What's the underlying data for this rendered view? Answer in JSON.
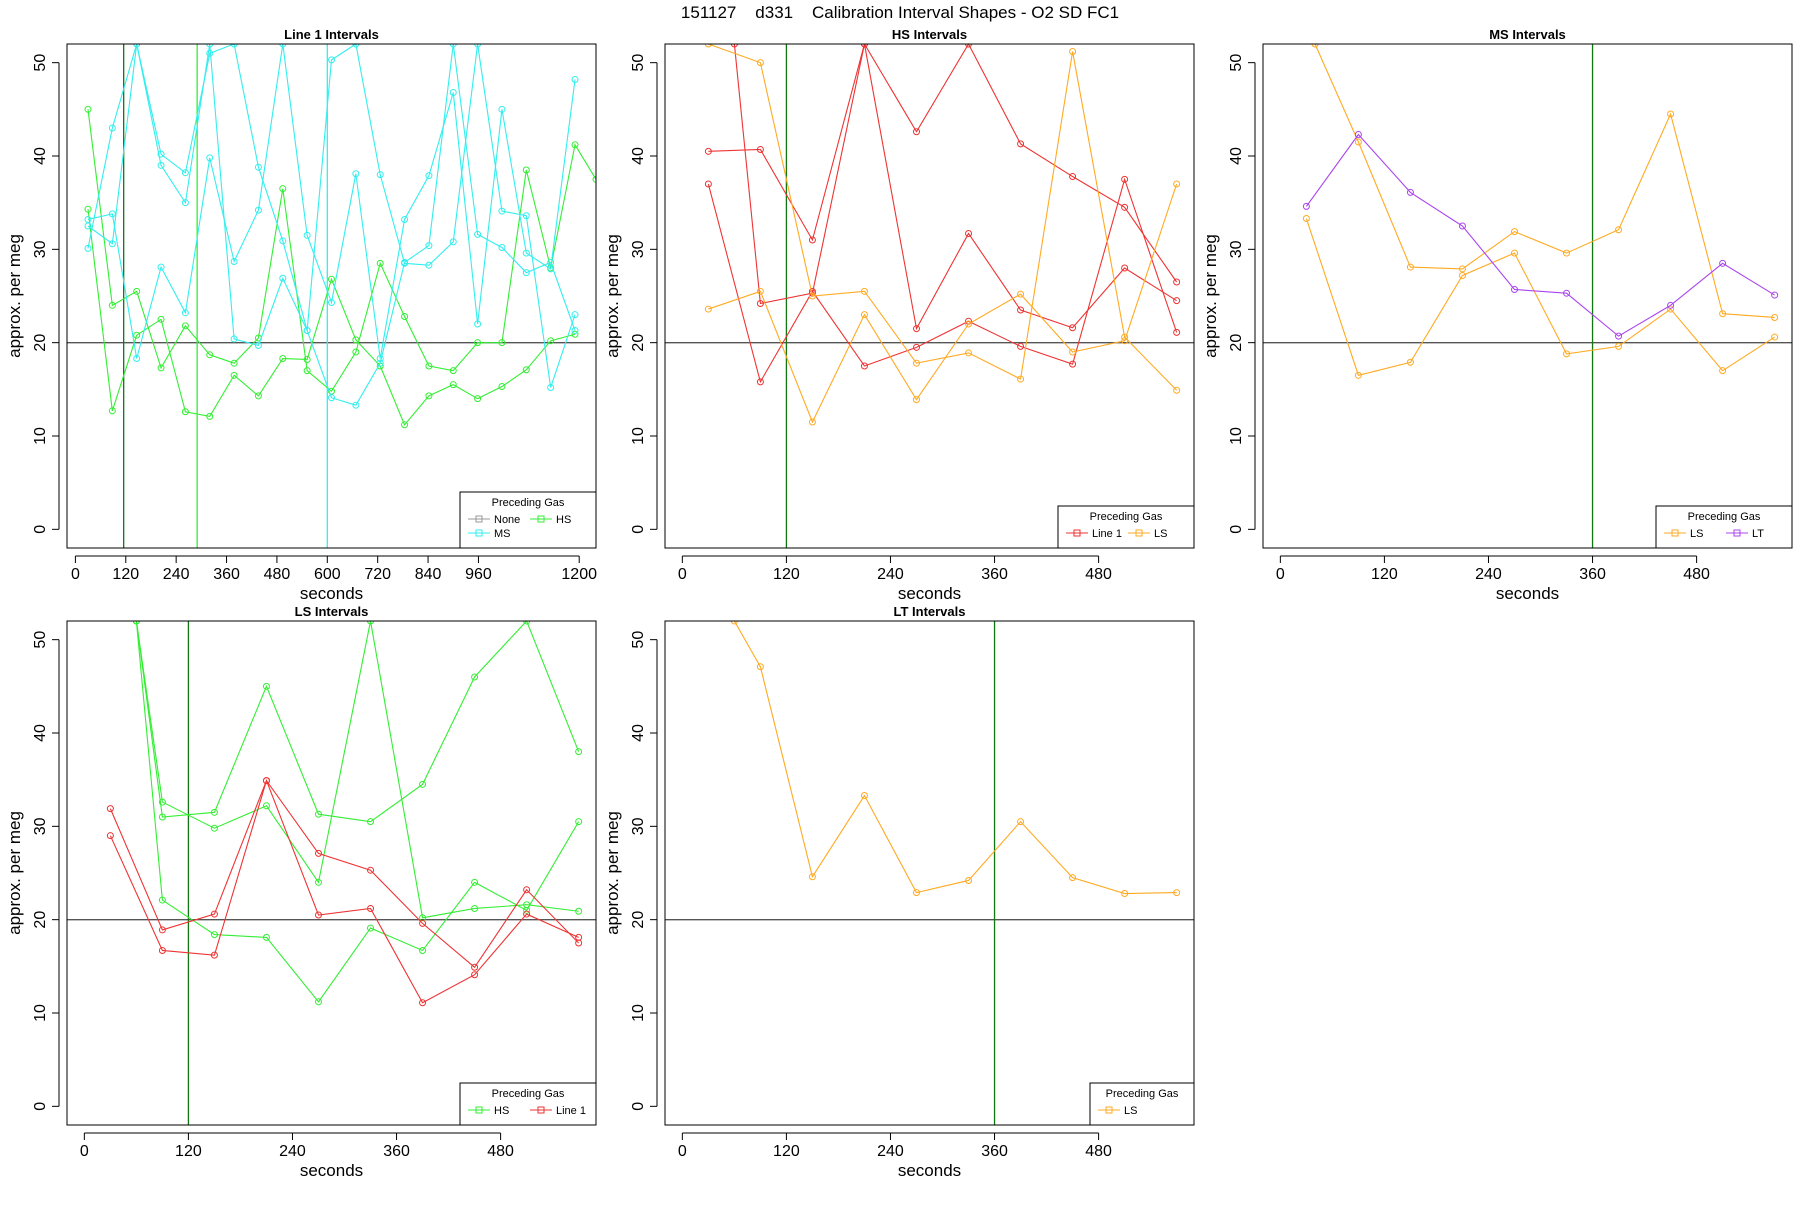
{
  "figure": {
    "title": "151127    d331    Calibration Interval Shapes - O2 SD FC1"
  },
  "colors": {
    "None": "#999999",
    "HS": "#33ee33",
    "MS": "#33eeee",
    "Line 1": "#ee3333",
    "LS": "#ffaa22",
    "LT": "#aa44ee",
    "reference_line": "#555555",
    "vline_green": "#117711",
    "vline_lime": "#33ee33",
    "vline_cyan": "#33eeee"
  },
  "chart_data": [
    {
      "type": "line",
      "title": "Line 1 Intervals",
      "xlabel": "seconds",
      "ylabel": "approx. per meg",
      "xlim": [
        -20,
        1240
      ],
      "ylim": [
        -2,
        52
      ],
      "xticks": [
        0,
        120,
        240,
        360,
        480,
        600,
        720,
        840,
        960,
        1200
      ],
      "yticks": [
        0,
        10,
        20,
        30,
        40,
        50
      ],
      "hline": 20,
      "vlines": [
        {
          "x": 115,
          "color": "vline_green"
        },
        {
          "x": 290,
          "color": "vline_lime"
        },
        {
          "x": 600,
          "color": "vline_cyan"
        }
      ],
      "legend": {
        "title": "Preceding Gas",
        "entries": [
          "None",
          "HS",
          "MS"
        ],
        "position": "bottom-right"
      },
      "series": [
        {
          "group": "HS",
          "x": [
            30,
            88,
            146,
            204,
            262,
            320,
            378,
            436,
            494,
            552,
            610,
            668,
            726,
            784,
            842,
            900,
            958,
            1016,
            1074,
            1132,
            1190,
            1240
          ],
          "y": [
            45,
            24,
            25.5,
            17.3,
            21.8,
            18.7,
            17.8,
            20.5,
            36.5,
            17,
            14.8,
            19,
            28.5,
            22.8,
            17.5,
            17,
            20,
            20,
            38.5,
            28,
            41.2,
            37.5
          ]
        },
        {
          "group": "HS",
          "x": [
            30,
            88,
            146,
            204,
            262,
            320,
            378,
            436,
            494,
            552,
            610,
            668,
            726,
            784,
            842,
            900,
            958,
            1016,
            1074,
            1132,
            1190
          ],
          "y": [
            34.3,
            12.7,
            20.8,
            22.5,
            12.6,
            12.1,
            16.5,
            14.3,
            18.3,
            18.2,
            26.8,
            20.3,
            17.5,
            11.2,
            14.3,
            15.5,
            14,
            15.3,
            17.1,
            20.2,
            20.9
          ]
        },
        {
          "group": "MS",
          "x": [
            30,
            88,
            146,
            204,
            262,
            320,
            378,
            436,
            494,
            552,
            610,
            668,
            726,
            784,
            842,
            900,
            958,
            1016,
            1074,
            1132,
            1190
          ],
          "y": [
            33.2,
            33.8,
            18.3,
            28.1,
            23.2,
            39.8,
            28.7,
            34.2,
            52,
            31.5,
            24.3,
            38.1,
            18.3,
            33.2,
            37.9,
            46.8,
            22,
            45,
            29.6,
            27.9,
            48.2
          ]
        },
        {
          "group": "MS",
          "x": [
            30,
            88,
            146,
            204,
            262,
            320,
            378,
            436,
            494,
            552,
            610,
            668,
            726,
            784,
            842,
            900,
            958,
            1016,
            1074,
            1132,
            1190
          ],
          "y": [
            30.1,
            43,
            52,
            40.2,
            38.2,
            51,
            52,
            38.8,
            30.9,
            21.3,
            50.3,
            52,
            38,
            28.5,
            28.3,
            30.8,
            52,
            34.1,
            33.6,
            15.2,
            23
          ]
        },
        {
          "group": "MS",
          "x": [
            30,
            88,
            146,
            204,
            262,
            320,
            378,
            436,
            494,
            552,
            610,
            668,
            726,
            784,
            842,
            900,
            958,
            1016,
            1074,
            1132,
            1190
          ],
          "y": [
            32.5,
            30.6,
            52,
            39,
            35,
            52,
            20.4,
            19.7,
            26.9,
            21.3,
            14.1,
            13.3,
            17.8,
            28.6,
            30.4,
            52,
            31.6,
            30.2,
            27.5,
            28.6,
            21.3
          ]
        }
      ]
    },
    {
      "type": "line",
      "title": "HS Intervals",
      "xlabel": "seconds",
      "ylabel": "approx. per meg",
      "xlim": [
        -20,
        590
      ],
      "ylim": [
        -2,
        52
      ],
      "xticks": [
        0,
        120,
        240,
        360,
        480
      ],
      "yticks": [
        0,
        10,
        20,
        30,
        40,
        50
      ],
      "hline": 20,
      "vlines": [
        {
          "x": 120,
          "color": "vline_green"
        }
      ],
      "legend": {
        "title": "Preceding Gas",
        "entries": [
          "Line 1",
          "LS"
        ],
        "position": "bottom-right"
      },
      "series": [
        {
          "group": "Line 1",
          "x": [
            30,
            90,
            150,
            210,
            270,
            330,
            390,
            450,
            510,
            570
          ],
          "y": [
            40.5,
            40.7,
            31,
            52,
            42.6,
            52,
            41.3,
            37.8,
            34.5,
            26.5
          ]
        },
        {
          "group": "Line 1",
          "x": [
            30,
            90,
            150,
            210,
            270,
            330,
            390,
            450,
            510,
            570
          ],
          "y": [
            37,
            15.8,
            25.5,
            17.5,
            19.5,
            22.3,
            19.6,
            17.7,
            37.5,
            21.1
          ]
        },
        {
          "group": "Line 1",
          "x": [
            60,
            90,
            150,
            210,
            270,
            330,
            390,
            450,
            510,
            570
          ],
          "y": [
            52,
            24.2,
            25.3,
            52,
            21.5,
            31.7,
            23.5,
            21.6,
            28,
            24.5
          ]
        },
        {
          "group": "LS",
          "x": [
            30,
            90,
            150,
            210,
            270,
            330,
            390,
            450,
            510,
            570
          ],
          "y": [
            52,
            50,
            25,
            25.5,
            17.8,
            18.9,
            16.1,
            51.2,
            20.6,
            14.9
          ]
        },
        {
          "group": "LS",
          "x": [
            30,
            90,
            150,
            210,
            270,
            330,
            390,
            450,
            510,
            570
          ],
          "y": [
            23.6,
            25.5,
            11.5,
            23,
            13.9,
            22,
            25.2,
            19,
            20.2,
            37
          ]
        }
      ]
    },
    {
      "type": "line",
      "title": "MS Intervals",
      "xlabel": "seconds",
      "ylabel": "approx. per meg",
      "xlim": [
        -20,
        590
      ],
      "ylim": [
        -2,
        52
      ],
      "xticks": [
        0,
        120,
        240,
        360,
        480
      ],
      "yticks": [
        0,
        10,
        20,
        30,
        40,
        50
      ],
      "hline": 20,
      "vlines": [
        {
          "x": 360,
          "color": "vline_green"
        }
      ],
      "legend": {
        "title": "Preceding Gas",
        "entries": [
          "LS",
          "LT"
        ],
        "position": "bottom-right"
      },
      "series": [
        {
          "group": "LS",
          "x": [
            30,
            90,
            150,
            210,
            270,
            330,
            390,
            450,
            510,
            570
          ],
          "y": [
            33.3,
            16.5,
            17.9,
            27.2,
            29.6,
            18.8,
            19.6,
            23.6,
            17,
            20.6
          ]
        },
        {
          "group": "LS",
          "x": [
            40,
            90,
            150,
            210,
            270,
            330,
            390,
            450,
            510,
            570
          ],
          "y": [
            52,
            41.5,
            28.1,
            27.9,
            31.9,
            29.6,
            32.1,
            44.5,
            23.1,
            22.7
          ]
        },
        {
          "group": "LT",
          "x": [
            30,
            90,
            150,
            210,
            270,
            330,
            390,
            450,
            510,
            570
          ],
          "y": [
            34.6,
            42.3,
            36.1,
            32.5,
            25.7,
            25.3,
            20.7,
            24,
            28.5,
            25.1
          ]
        }
      ]
    },
    {
      "type": "line",
      "title": "LS Intervals",
      "xlabel": "seconds",
      "ylabel": "approx. per meg",
      "xlim": [
        -20,
        590
      ],
      "ylim": [
        -2,
        52
      ],
      "xticks": [
        0,
        120,
        240,
        360,
        480
      ],
      "yticks": [
        0,
        10,
        20,
        30,
        40,
        50
      ],
      "hline": 20,
      "vlines": [
        {
          "x": 120,
          "color": "vline_green"
        }
      ],
      "legend": {
        "title": "Preceding Gas",
        "entries": [
          "HS",
          "Line 1"
        ],
        "position": "bottom-right"
      },
      "series": [
        {
          "group": "HS",
          "x": [
            60,
            90,
            150,
            210,
            270,
            330,
            390,
            450,
            510,
            570
          ],
          "y": [
            52,
            31,
            31.5,
            45,
            31.3,
            30.5,
            34.5,
            46,
            52,
            38
          ]
        },
        {
          "group": "HS",
          "x": [
            60,
            90,
            150,
            210,
            270,
            330,
            390,
            450,
            510,
            570
          ],
          "y": [
            52,
            32.6,
            29.8,
            32.2,
            24,
            52,
            20.2,
            21.2,
            21.6,
            20.9
          ]
        },
        {
          "group": "HS",
          "x": [
            60,
            90,
            150,
            210,
            270,
            330,
            390,
            450,
            510,
            570
          ],
          "y": [
            52,
            22.1,
            18.4,
            18.1,
            11.2,
            19.1,
            16.7,
            24,
            21,
            30.5
          ]
        },
        {
          "group": "Line 1",
          "x": [
            30,
            90,
            150,
            210,
            270,
            330,
            390,
            450,
            510,
            570
          ],
          "y": [
            31.9,
            18.9,
            20.6,
            34.9,
            27.1,
            25.3,
            19.6,
            14.9,
            23.2,
            17.5
          ]
        },
        {
          "group": "Line 1",
          "x": [
            30,
            90,
            150,
            210,
            270,
            330,
            390,
            450,
            510,
            570
          ],
          "y": [
            29,
            16.7,
            16.2,
            34.9,
            20.5,
            21.2,
            11.1,
            14.1,
            20.6,
            18.1
          ]
        }
      ]
    },
    {
      "type": "line",
      "title": "LT Intervals",
      "xlabel": "seconds",
      "ylabel": "approx. per meg",
      "xlim": [
        -20,
        590
      ],
      "ylim": [
        -2,
        52
      ],
      "xticks": [
        0,
        120,
        240,
        360,
        480
      ],
      "yticks": [
        0,
        10,
        20,
        30,
        40,
        50
      ],
      "hline": 20,
      "vlines": [
        {
          "x": 360,
          "color": "vline_green"
        }
      ],
      "legend": {
        "title": "Preceding Gas",
        "entries": [
          "LS"
        ],
        "position": "bottom-right"
      },
      "series": [
        {
          "group": "LS",
          "x": [
            60,
            90,
            150,
            210,
            270,
            330,
            390,
            450,
            510,
            570
          ],
          "y": [
            52,
            47.1,
            24.6,
            33.3,
            22.9,
            24.2,
            30.5,
            24.5,
            22.8,
            22.9
          ]
        }
      ]
    }
  ]
}
